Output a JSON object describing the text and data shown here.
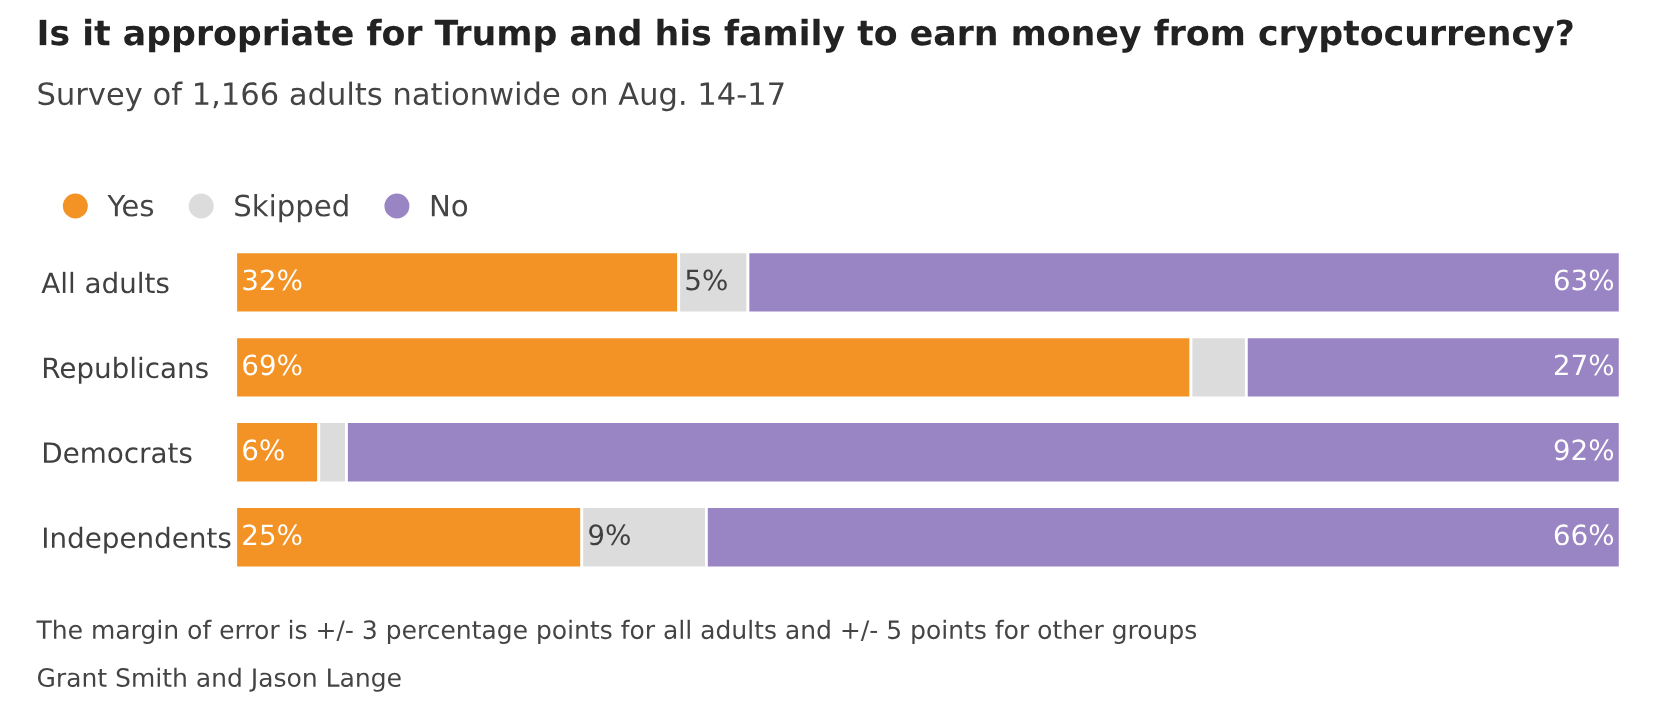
{
  "chart_data": {
    "type": "bar",
    "orientation": "horizontal",
    "stacked": true,
    "title": "Is it appropriate for Trump and his family to earn money from cryptocurrency?",
    "subtitle": "Survey of 1,166 adults nationwide on Aug. 14-17",
    "categories": [
      "All adults",
      "Republicans",
      "Democrats",
      "Independents"
    ],
    "series": [
      {
        "name": "Yes",
        "color": "#f39325",
        "values": [
          32,
          69,
          6,
          25
        ],
        "value_labels": [
          "32%",
          "69%",
          "6%",
          "25%"
        ]
      },
      {
        "name": "Skipped",
        "color": "#dcdcdc",
        "values": [
          5,
          4,
          2,
          9
        ],
        "value_labels": [
          "5%",
          null,
          null,
          "9%"
        ]
      },
      {
        "name": "No",
        "color": "#9a85c4",
        "values": [
          63,
          27,
          92,
          66
        ],
        "value_labels": [
          "63%",
          "27%",
          "92%",
          "66%"
        ]
      }
    ],
    "xlim": [
      0,
      100
    ],
    "tick_labels": "y",
    "legend": "top left",
    "grid": false,
    "annotations": [
      "The margin of error is +/- 3 percentage points for all adults and +/- 5 points for other groups",
      "Grant Smith and Jason Lange"
    ]
  }
}
